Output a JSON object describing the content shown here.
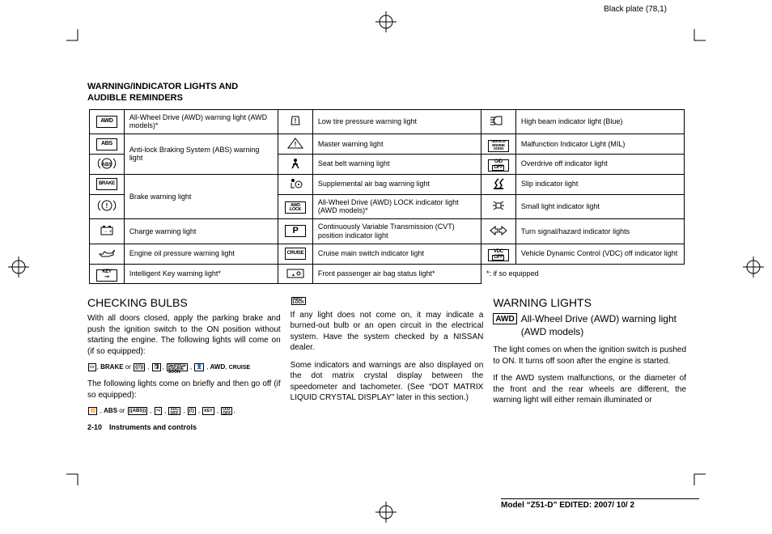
{
  "plate_label": "Black plate (78,1)",
  "section_title_line1": "WARNING/INDICATOR LIGHTS AND",
  "section_title_line2": "AUDIBLE REMINDERS",
  "table": {
    "col1": [
      {
        "icon": "AWD",
        "desc": "All-Wheel Drive (AWD) warning light (AWD models)*",
        "rowspan": 1
      },
      {
        "icon": "ABS",
        "desc": "Anti-lock Braking System (ABS) warning light",
        "rowspan": 2,
        "icon2": "abs-circ"
      },
      {
        "icon": "BRAKE",
        "desc": "Brake warning light",
        "rowspan": 2,
        "icon2": "brake-circ"
      },
      {
        "icon": "batt",
        "desc": "Charge warning light",
        "rowspan": 1
      },
      {
        "icon": "oil",
        "desc": "Engine oil pressure warning light",
        "rowspan": 1
      },
      {
        "icon": "KEY",
        "desc": "Intelligent Key warning light*",
        "rowspan": 1
      }
    ],
    "col2": [
      {
        "icon": "tire",
        "desc": "Low tire pressure warning light"
      },
      {
        "icon": "tri",
        "desc": "Master warning light"
      },
      {
        "icon": "belt",
        "desc": "Seat belt warning light"
      },
      {
        "icon": "airbag",
        "desc": "Supplemental air bag warning light"
      },
      {
        "icon": "AWDLOCK",
        "desc": "All-Wheel Drive (AWD) LOCK indicator light (AWD models)*"
      },
      {
        "icon": "P",
        "desc": "Continuously Variable Transmission (CVT) position indicator light"
      },
      {
        "icon": "CRUISE",
        "desc": "Cruise main switch indicator light"
      },
      {
        "icon": "pass-airbag",
        "desc": "Front passenger air bag status light*"
      }
    ],
    "col3": [
      {
        "icon": "highbeam",
        "desc": "High beam indicator light (Blue)"
      },
      {
        "icon": "SERVICE",
        "desc": "Malfunction Indicator Light (MIL)"
      },
      {
        "icon": "ODOFF",
        "desc": "Overdrive off indicator light"
      },
      {
        "icon": "slip",
        "desc": "Slip indicator light"
      },
      {
        "icon": "small-light",
        "desc": "Small light indicator light"
      },
      {
        "icon": "turn",
        "desc": "Turn signal/hazard indicator lights"
      },
      {
        "icon": "VDCOFF",
        "desc": "Vehicle Dynamic Control (VDC) off indicator light"
      },
      {
        "icon": "",
        "desc": "*: if so equipped",
        "noborder": true
      }
    ]
  },
  "col1_h": "CHECKING BULBS",
  "col1_p1": "With all doors closed, apply the parking brake and push the ignition switch to the ON position without starting the engine. The following lights will come on (if so equipped):",
  "col1_p2": "The following lights come on briefly and then go off (if so equipped):",
  "footer": "2-10 Instruments and controls",
  "col2_p1": "If any light does not come on, it may indicate a burned-out bulb or an open circuit in the electrical system. Have the system checked by a NISSAN dealer.",
  "col2_p2": "Some indicators and warnings are also displayed on the dot matrix crystal display between the speedometer and tachometer. (See “DOT MATRIX LIQUID CRYSTAL DISPLAY” later in this section.)",
  "col3_h": "WARNING LIGHTS",
  "col3_sub": "All-Wheel Drive (AWD) warning light (AWD models)",
  "col3_p1": "The light comes on when the ignition switch is pushed to ON. It turns off soon after the engine is started.",
  "col3_p2": "If the AWD system malfunctions, or the diameter of the front and the rear wheels are different, the warning light will either remain illuminated or",
  "model_line": "Model “Z51-D” EDITED: 2007/ 10/ 2"
}
